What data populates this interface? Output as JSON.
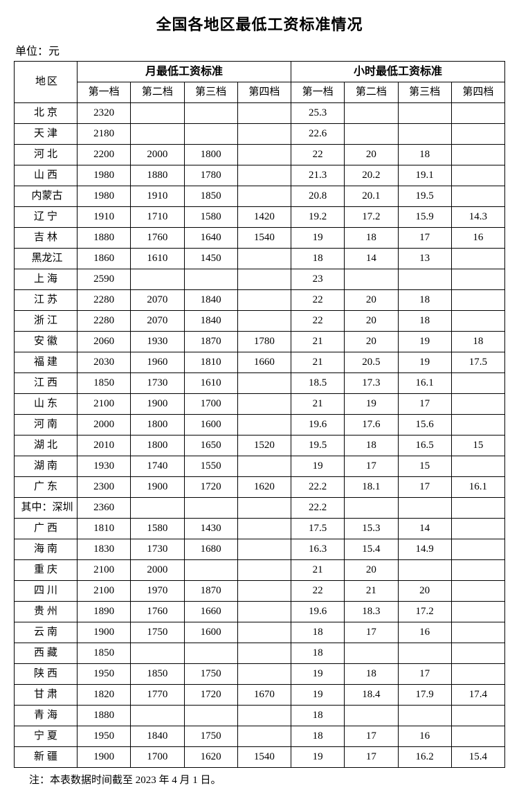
{
  "title": "全国各地区最低工资标准情况",
  "unit": "单位：元",
  "footnote": "注：本表数据时间截至 2023 年 4 月 1 日。",
  "headers": {
    "region": "地区",
    "monthly": "月最低工资标准",
    "hourly": "小时最低工资标准",
    "tier1": "第一档",
    "tier2": "第二档",
    "tier3": "第三档",
    "tier4": "第四档"
  },
  "rows": [
    {
      "region": "北京",
      "spaced": true,
      "m1": "2320",
      "m2": "",
      "m3": "",
      "m4": "",
      "h1": "25.3",
      "h2": "",
      "h3": "",
      "h4": ""
    },
    {
      "region": "天津",
      "spaced": true,
      "m1": "2180",
      "m2": "",
      "m3": "",
      "m4": "",
      "h1": "22.6",
      "h2": "",
      "h3": "",
      "h4": ""
    },
    {
      "region": "河北",
      "spaced": true,
      "m1": "2200",
      "m2": "2000",
      "m3": "1800",
      "m4": "",
      "h1": "22",
      "h2": "20",
      "h3": "18",
      "h4": ""
    },
    {
      "region": "山西",
      "spaced": true,
      "m1": "1980",
      "m2": "1880",
      "m3": "1780",
      "m4": "",
      "h1": "21.3",
      "h2": "20.2",
      "h3": "19.1",
      "h4": ""
    },
    {
      "region": "内蒙古",
      "spaced": false,
      "m1": "1980",
      "m2": "1910",
      "m3": "1850",
      "m4": "",
      "h1": "20.8",
      "h2": "20.1",
      "h3": "19.5",
      "h4": ""
    },
    {
      "region": "辽宁",
      "spaced": true,
      "m1": "1910",
      "m2": "1710",
      "m3": "1580",
      "m4": "1420",
      "h1": "19.2",
      "h2": "17.2",
      "h3": "15.9",
      "h4": "14.3"
    },
    {
      "region": "吉林",
      "spaced": true,
      "m1": "1880",
      "m2": "1760",
      "m3": "1640",
      "m4": "1540",
      "h1": "19",
      "h2": "18",
      "h3": "17",
      "h4": "16"
    },
    {
      "region": "黑龙江",
      "spaced": false,
      "m1": "1860",
      "m2": "1610",
      "m3": "1450",
      "m4": "",
      "h1": "18",
      "h2": "14",
      "h3": "13",
      "h4": ""
    },
    {
      "region": "上海",
      "spaced": true,
      "m1": "2590",
      "m2": "",
      "m3": "",
      "m4": "",
      "h1": "23",
      "h2": "",
      "h3": "",
      "h4": ""
    },
    {
      "region": "江苏",
      "spaced": true,
      "m1": "2280",
      "m2": "2070",
      "m3": "1840",
      "m4": "",
      "h1": "22",
      "h2": "20",
      "h3": "18",
      "h4": ""
    },
    {
      "region": "浙江",
      "spaced": true,
      "m1": "2280",
      "m2": "2070",
      "m3": "1840",
      "m4": "",
      "h1": "22",
      "h2": "20",
      "h3": "18",
      "h4": ""
    },
    {
      "region": "安徽",
      "spaced": true,
      "m1": "2060",
      "m2": "1930",
      "m3": "1870",
      "m4": "1780",
      "h1": "21",
      "h2": "20",
      "h3": "19",
      "h4": "18"
    },
    {
      "region": "福建",
      "spaced": true,
      "m1": "2030",
      "m2": "1960",
      "m3": "1810",
      "m4": "1660",
      "h1": "21",
      "h2": "20.5",
      "h3": "19",
      "h4": "17.5"
    },
    {
      "region": "江西",
      "spaced": true,
      "m1": "1850",
      "m2": "1730",
      "m3": "1610",
      "m4": "",
      "h1": "18.5",
      "h2": "17.3",
      "h3": "16.1",
      "h4": ""
    },
    {
      "region": "山东",
      "spaced": true,
      "m1": "2100",
      "m2": "1900",
      "m3": "1700",
      "m4": "",
      "h1": "21",
      "h2": "19",
      "h3": "17",
      "h4": ""
    },
    {
      "region": "河南",
      "spaced": true,
      "m1": "2000",
      "m2": "1800",
      "m3": "1600",
      "m4": "",
      "h1": "19.6",
      "h2": "17.6",
      "h3": "15.6",
      "h4": ""
    },
    {
      "region": "湖北",
      "spaced": true,
      "m1": "2010",
      "m2": "1800",
      "m3": "1650",
      "m4": "1520",
      "h1": "19.5",
      "h2": "18",
      "h3": "16.5",
      "h4": "15"
    },
    {
      "region": "湖南",
      "spaced": true,
      "m1": "1930",
      "m2": "1740",
      "m3": "1550",
      "m4": "",
      "h1": "19",
      "h2": "17",
      "h3": "15",
      "h4": ""
    },
    {
      "region": "广东",
      "spaced": true,
      "m1": "2300",
      "m2": "1900",
      "m3": "1720",
      "m4": "1620",
      "h1": "22.2",
      "h2": "18.1",
      "h3": "17",
      "h4": "16.1"
    },
    {
      "region": "其中：深圳",
      "spaced": false,
      "m1": "2360",
      "m2": "",
      "m3": "",
      "m4": "",
      "h1": "22.2",
      "h2": "",
      "h3": "",
      "h4": ""
    },
    {
      "region": "广西",
      "spaced": true,
      "m1": "1810",
      "m2": "1580",
      "m3": "1430",
      "m4": "",
      "h1": "17.5",
      "h2": "15.3",
      "h3": "14",
      "h4": ""
    },
    {
      "region": "海南",
      "spaced": true,
      "m1": "1830",
      "m2": "1730",
      "m3": "1680",
      "m4": "",
      "h1": "16.3",
      "h2": "15.4",
      "h3": "14.9",
      "h4": ""
    },
    {
      "region": "重庆",
      "spaced": true,
      "m1": "2100",
      "m2": "2000",
      "m3": "",
      "m4": "",
      "h1": "21",
      "h2": "20",
      "h3": "",
      "h4": ""
    },
    {
      "region": "四川",
      "spaced": true,
      "m1": "2100",
      "m2": "1970",
      "m3": "1870",
      "m4": "",
      "h1": "22",
      "h2": "21",
      "h3": "20",
      "h4": ""
    },
    {
      "region": "贵州",
      "spaced": true,
      "m1": "1890",
      "m2": "1760",
      "m3": "1660",
      "m4": "",
      "h1": "19.6",
      "h2": "18.3",
      "h3": "17.2",
      "h4": ""
    },
    {
      "region": "云南",
      "spaced": true,
      "m1": "1900",
      "m2": "1750",
      "m3": "1600",
      "m4": "",
      "h1": "18",
      "h2": "17",
      "h3": "16",
      "h4": ""
    },
    {
      "region": "西藏",
      "spaced": true,
      "m1": "1850",
      "m2": "",
      "m3": "",
      "m4": "",
      "h1": "18",
      "h2": "",
      "h3": "",
      "h4": ""
    },
    {
      "region": "陕西",
      "spaced": true,
      "m1": "1950",
      "m2": "1850",
      "m3": "1750",
      "m4": "",
      "h1": "19",
      "h2": "18",
      "h3": "17",
      "h4": ""
    },
    {
      "region": "甘肃",
      "spaced": true,
      "m1": "1820",
      "m2": "1770",
      "m3": "1720",
      "m4": "1670",
      "h1": "19",
      "h2": "18.4",
      "h3": "17.9",
      "h4": "17.4"
    },
    {
      "region": "青海",
      "spaced": true,
      "m1": "1880",
      "m2": "",
      "m3": "",
      "m4": "",
      "h1": "18",
      "h2": "",
      "h3": "",
      "h4": ""
    },
    {
      "region": "宁夏",
      "spaced": true,
      "m1": "1950",
      "m2": "1840",
      "m3": "1750",
      "m4": "",
      "h1": "18",
      "h2": "17",
      "h3": "16",
      "h4": ""
    },
    {
      "region": "新疆",
      "spaced": true,
      "m1": "1900",
      "m2": "1700",
      "m3": "1620",
      "m4": "1540",
      "h1": "19",
      "h2": "17",
      "h3": "16.2",
      "h4": "15.4"
    }
  ]
}
